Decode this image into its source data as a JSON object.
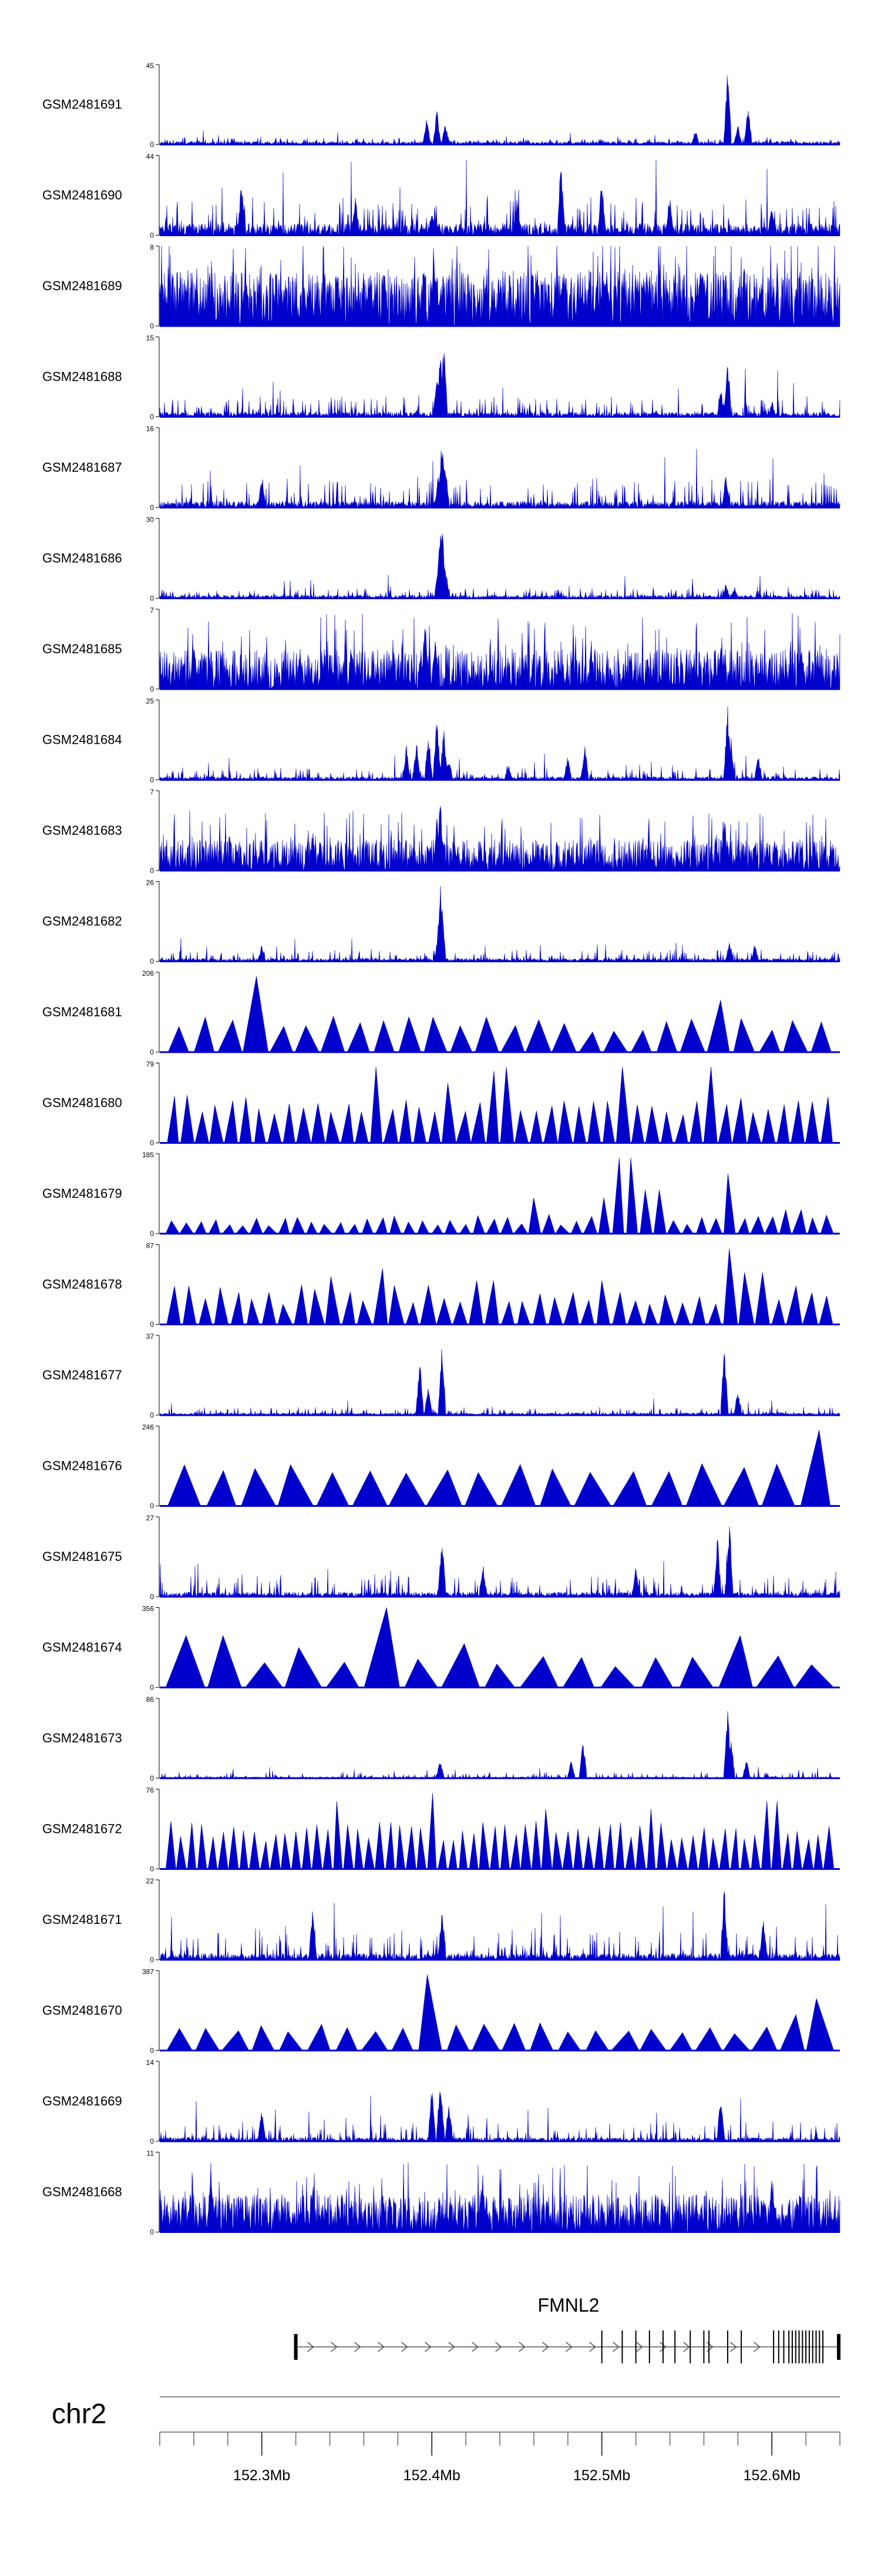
{
  "chart_data": {
    "type": "area",
    "title": "",
    "xlabel": "",
    "ylabel": "",
    "x_range": [
      152.24,
      152.64
    ],
    "x_unit": "Mb",
    "chromosome": "chr2",
    "xticks": [
      {
        "value": 152.3,
        "label": "152.3Mb"
      },
      {
        "value": 152.4,
        "label": "152.4Mb"
      },
      {
        "value": 152.5,
        "label": "152.5Mb"
      },
      {
        "value": 152.6,
        "label": "152.6Mb"
      }
    ],
    "gene": {
      "name": "FMNL2",
      "start": 152.32,
      "end": 152.64,
      "strand": "+",
      "exons": [
        152.32,
        152.5,
        152.512,
        152.52,
        152.528,
        152.536,
        152.543,
        152.552,
        152.56,
        152.563,
        152.574,
        152.582,
        152.601,
        152.604,
        152.607,
        152.61,
        152.612,
        152.614,
        152.616,
        152.618,
        152.62,
        152.622,
        152.624,
        152.626,
        152.628,
        152.63,
        152.64
      ]
    },
    "series": [
      {
        "name": "GSM2481691",
        "ymax": "45",
        "style": "spiky",
        "baseline": 0.04,
        "noise": 0.06,
        "peaks": [
          [
            152.397,
            0.35
          ],
          [
            152.403,
            0.45
          ],
          [
            152.408,
            0.3
          ],
          [
            152.555,
            0.2
          ],
          [
            152.574,
            1.0
          ],
          [
            152.586,
            0.55
          ],
          [
            152.58,
            0.25
          ]
        ]
      },
      {
        "name": "GSM2481690",
        "ymax": "44",
        "style": "spiky",
        "baseline": 0.15,
        "noise": 0.35,
        "peaks": [
          [
            152.288,
            0.75
          ],
          [
            152.355,
            0.55
          ],
          [
            152.4,
            0.35
          ],
          [
            152.45,
            0.45
          ],
          [
            152.476,
            1.0
          ],
          [
            152.5,
            0.75
          ],
          [
            152.54,
            0.5
          ],
          [
            152.6,
            0.4
          ]
        ]
      },
      {
        "name": "GSM2481689",
        "ymax": "8",
        "style": "dense",
        "baseline": 0.35,
        "noise": 0.55,
        "peaks": [
          [
            152.372,
            0.85
          ],
          [
            152.402,
            0.8
          ],
          [
            152.462,
            0.8
          ],
          [
            152.558,
            0.95
          ]
        ]
      },
      {
        "name": "GSM2481688",
        "ymax": "15",
        "style": "spiky",
        "baseline": 0.06,
        "noise": 0.22,
        "peaks": [
          [
            152.405,
            0.9
          ],
          [
            152.407,
            1.0
          ],
          [
            152.403,
            0.55
          ],
          [
            152.57,
            0.35
          ],
          [
            152.574,
            0.8
          ],
          [
            152.6,
            0.2
          ]
        ]
      },
      {
        "name": "GSM2481687",
        "ymax": "16",
        "style": "spiky",
        "baseline": 0.08,
        "noise": 0.3,
        "peaks": [
          [
            152.406,
            0.95
          ],
          [
            152.404,
            0.5
          ],
          [
            152.408,
            0.6
          ],
          [
            152.573,
            0.45
          ],
          [
            152.3,
            0.45
          ]
        ]
      },
      {
        "name": "GSM2481686",
        "ymax": "30",
        "style": "spiky",
        "baseline": 0.04,
        "noise": 0.1,
        "peaks": [
          [
            152.405,
            0.9
          ],
          [
            152.406,
            1.0
          ],
          [
            152.404,
            0.6
          ],
          [
            152.408,
            0.45
          ],
          [
            152.573,
            0.2
          ],
          [
            152.578,
            0.15
          ]
        ]
      },
      {
        "name": "GSM2481685",
        "ymax": "7",
        "style": "dense",
        "baseline": 0.2,
        "noise": 0.5,
        "peaks": [
          [
            152.396,
            0.95
          ],
          [
            152.402,
            0.75
          ],
          [
            152.57,
            0.65
          ],
          [
            152.26,
            0.65
          ]
        ]
      },
      {
        "name": "GSM2481684",
        "ymax": "25",
        "style": "spiky",
        "baseline": 0.04,
        "noise": 0.12,
        "peaks": [
          [
            152.385,
            0.45
          ],
          [
            152.391,
            0.55
          ],
          [
            152.398,
            0.65
          ],
          [
            152.403,
            0.85
          ],
          [
            152.407,
            0.7
          ],
          [
            152.41,
            0.3
          ],
          [
            152.445,
            0.2
          ],
          [
            152.48,
            0.3
          ],
          [
            152.49,
            0.45
          ],
          [
            152.574,
            0.95
          ],
          [
            152.576,
            0.55
          ],
          [
            152.592,
            0.35
          ]
        ]
      },
      {
        "name": "GSM2481683",
        "ymax": "7",
        "style": "dense",
        "baseline": 0.15,
        "noise": 0.4,
        "peaks": [
          [
            152.405,
            0.95
          ],
          [
            152.403,
            0.7
          ],
          [
            152.33,
            0.55
          ],
          [
            152.572,
            0.75
          ]
        ]
      },
      {
        "name": "GSM2481682",
        "ymax": "26",
        "style": "spiky",
        "baseline": 0.04,
        "noise": 0.12,
        "peaks": [
          [
            152.405,
            1.0
          ],
          [
            152.406,
            0.75
          ],
          [
            152.404,
            0.45
          ],
          [
            152.575,
            0.25
          ],
          [
            152.59,
            0.25
          ],
          [
            152.3,
            0.22
          ]
        ]
      },
      {
        "name": "GSM2481681",
        "ymax": "206",
        "style": "triangles",
        "count": 26,
        "hmin": 0.25,
        "hmax": 0.45,
        "peaks": [
          [
            152.296,
            0.95
          ],
          [
            152.317,
            0.3
          ],
          [
            152.57,
            0.65
          ],
          [
            152.574,
            0.5
          ]
        ]
      },
      {
        "name": "GSM2481680",
        "ymax": "79",
        "style": "triangles",
        "count": 46,
        "hmin": 0.35,
        "hmax": 0.6,
        "peaks": [
          [
            152.37,
            0.95
          ],
          [
            152.41,
            0.75
          ],
          [
            152.433,
            0.9
          ],
          [
            152.444,
            0.95
          ],
          [
            152.51,
            0.95
          ],
          [
            152.514,
            0.75
          ],
          [
            152.565,
            0.95
          ]
        ]
      },
      {
        "name": "GSM2481679",
        "ymax": "185",
        "style": "triangles",
        "count": 48,
        "hmin": 0.1,
        "hmax": 0.25,
        "peaks": [
          [
            152.46,
            0.45
          ],
          [
            152.5,
            0.45
          ],
          [
            152.514,
            0.95
          ],
          [
            152.53,
            0.55
          ],
          [
            152.576,
            0.75
          ],
          [
            152.612,
            0.3
          ]
        ]
      },
      {
        "name": "GSM2481678",
        "ymax": "87",
        "style": "triangles",
        "count": 42,
        "hmin": 0.25,
        "hmax": 0.5,
        "peaks": [
          [
            152.345,
            0.6
          ],
          [
            152.372,
            0.7
          ],
          [
            152.43,
            0.55
          ],
          [
            152.5,
            0.55
          ],
          [
            152.576,
            0.95
          ],
          [
            152.59,
            0.65
          ]
        ]
      },
      {
        "name": "GSM2481677",
        "ymax": "37",
        "style": "spiky",
        "baseline": 0.03,
        "noise": 0.08,
        "peaks": [
          [
            152.393,
            0.8
          ],
          [
            152.406,
            0.95
          ],
          [
            152.398,
            0.45
          ],
          [
            152.572,
            0.95
          ],
          [
            152.58,
            0.35
          ]
        ]
      },
      {
        "name": "GSM2481676",
        "ymax": "246",
        "style": "triangles",
        "count": 18,
        "hmin": 0.4,
        "hmax": 0.55,
        "peaks": [
          [
            152.617,
            0.95
          ],
          [
            152.632,
            0.95
          ],
          [
            152.628,
            0.85
          ]
        ]
      },
      {
        "name": "GSM2481675",
        "ymax": "27",
        "style": "spiky",
        "baseline": 0.06,
        "noise": 0.22,
        "peaks": [
          [
            152.406,
            0.85
          ],
          [
            152.568,
            0.8
          ],
          [
            152.575,
            1.0
          ],
          [
            152.43,
            0.45
          ],
          [
            152.52,
            0.4
          ]
        ]
      },
      {
        "name": "GSM2481674",
        "ymax": "356",
        "style": "triangles",
        "count": 17,
        "hmin": 0.25,
        "hmax": 0.45,
        "peaks": [
          [
            152.255,
            0.6
          ],
          [
            152.268,
            0.65
          ],
          [
            152.33,
            0.5
          ],
          [
            152.372,
            1.0
          ],
          [
            152.418,
            0.55
          ],
          [
            152.571,
            0.65
          ]
        ]
      },
      {
        "name": "GSM2481673",
        "ymax": "86",
        "style": "spiky",
        "baseline": 0.02,
        "noise": 0.06,
        "peaks": [
          [
            152.405,
            0.25
          ],
          [
            152.489,
            0.5
          ],
          [
            152.482,
            0.25
          ],
          [
            152.574,
            0.95
          ],
          [
            152.576,
            0.55
          ],
          [
            152.585,
            0.25
          ]
        ]
      },
      {
        "name": "GSM2481672",
        "ymax": "76",
        "style": "triangles",
        "count": 64,
        "hmin": 0.35,
        "hmax": 0.6,
        "peaks": [
          [
            152.345,
            0.85
          ],
          [
            152.4,
            0.95
          ],
          [
            152.47,
            0.75
          ],
          [
            152.53,
            0.75
          ],
          [
            152.6,
            0.85
          ]
        ]
      },
      {
        "name": "GSM2481671",
        "ymax": "22",
        "style": "spiky",
        "baseline": 0.08,
        "noise": 0.3,
        "peaks": [
          [
            152.33,
            0.75
          ],
          [
            152.406,
            0.75
          ],
          [
            152.572,
            0.95
          ],
          [
            152.595,
            0.55
          ]
        ]
      },
      {
        "name": "GSM2481670",
        "ymax": "387",
        "style": "triangles",
        "count": 24,
        "hmin": 0.2,
        "hmax": 0.35,
        "peaks": [
          [
            152.395,
            0.95
          ],
          [
            152.633,
            0.65
          ],
          [
            152.62,
            0.45
          ]
        ]
      },
      {
        "name": "GSM2481669",
        "ymax": "14",
        "style": "spiky",
        "baseline": 0.05,
        "noise": 0.2,
        "peaks": [
          [
            152.4,
            0.7
          ],
          [
            152.405,
            0.9
          ],
          [
            152.41,
            0.55
          ],
          [
            152.57,
            0.65
          ],
          [
            152.3,
            0.45
          ]
        ]
      },
      {
        "name": "GSM2481668",
        "ymax": "11",
        "style": "dense",
        "baseline": 0.2,
        "noise": 0.45,
        "peaks": [
          [
            152.27,
            0.9
          ],
          [
            152.33,
            0.65
          ],
          [
            152.43,
            0.75
          ],
          [
            152.6,
            0.7
          ]
        ]
      }
    ]
  }
}
